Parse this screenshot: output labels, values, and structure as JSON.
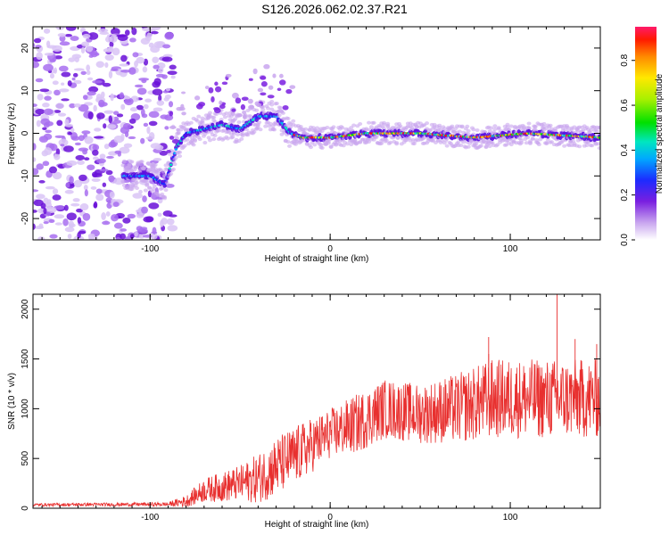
{
  "title": "S126.2026.062.02.37.R21",
  "chart_data": [
    {
      "type": "heatmap",
      "xlabel": "Height of straight line (km)",
      "ylabel": "Frequency (Hz)",
      "xlim": [
        -165,
        150
      ],
      "ylim": [
        -25,
        25
      ],
      "xticks": [
        -100,
        0,
        100
      ],
      "yticks": [
        -20,
        -10,
        0,
        10,
        20
      ],
      "colorbar": {
        "label": "Normalized spectral amplitude",
        "range": [
          0.0,
          0.95
        ],
        "ticks": [
          "0.0",
          "0.2",
          "0.4",
          "0.6",
          "0.8"
        ]
      },
      "ridge": [
        {
          "x": -115,
          "y": -10
        },
        {
          "x": -100,
          "y": -10
        },
        {
          "x": -92,
          "y": -12
        },
        {
          "x": -85,
          "y": -3
        },
        {
          "x": -80,
          "y": 0
        },
        {
          "x": -70,
          "y": 1
        },
        {
          "x": -60,
          "y": 2
        },
        {
          "x": -50,
          "y": 1
        },
        {
          "x": -40,
          "y": 4
        },
        {
          "x": -30,
          "y": 4
        },
        {
          "x": -22,
          "y": 0
        },
        {
          "x": -15,
          "y": -1
        },
        {
          "x": 0,
          "y": -1
        },
        {
          "x": 20,
          "y": 0
        },
        {
          "x": 50,
          "y": 0
        },
        {
          "x": 80,
          "y": -1
        },
        {
          "x": 110,
          "y": 0
        },
        {
          "x": 150,
          "y": -1
        }
      ]
    },
    {
      "type": "line",
      "xlabel": "Height of straight line (km)",
      "ylabel": "SNR (10 * v/v)",
      "xlim": [
        -165,
        150
      ],
      "ylim": [
        0,
        2150
      ],
      "xticks": [
        -100,
        0,
        100
      ],
      "yticks": [
        0,
        500,
        1000,
        1500,
        2000
      ],
      "color": "#e8302f",
      "envelope": [
        {
          "x": -165,
          "mean": 35,
          "spread": 15
        },
        {
          "x": -90,
          "mean": 40,
          "spread": 20
        },
        {
          "x": -80,
          "mean": 70,
          "spread": 60
        },
        {
          "x": -70,
          "mean": 180,
          "spread": 120
        },
        {
          "x": -50,
          "mean": 250,
          "spread": 180
        },
        {
          "x": -40,
          "mean": 300,
          "spread": 250
        },
        {
          "x": -30,
          "mean": 420,
          "spread": 300
        },
        {
          "x": -20,
          "mean": 520,
          "spread": 300
        },
        {
          "x": 0,
          "mean": 750,
          "spread": 250
        },
        {
          "x": 15,
          "mean": 850,
          "spread": 300
        },
        {
          "x": 30,
          "mean": 1000,
          "spread": 300
        },
        {
          "x": 50,
          "mean": 950,
          "spread": 300
        },
        {
          "x": 70,
          "mean": 1000,
          "spread": 350
        },
        {
          "x": 90,
          "mean": 1100,
          "spread": 400
        },
        {
          "x": 110,
          "mean": 1100,
          "spread": 400
        },
        {
          "x": 130,
          "mean": 1100,
          "spread": 400
        },
        {
          "x": 150,
          "mean": 1100,
          "spread": 400
        }
      ],
      "peaks": [
        {
          "x": 126,
          "y": 2150
        },
        {
          "x": 88,
          "y": 1720
        },
        {
          "x": 136,
          "y": 1700
        },
        {
          "x": 148,
          "y": 1650
        },
        {
          "x": 88,
          "y": 1550
        }
      ]
    }
  ]
}
